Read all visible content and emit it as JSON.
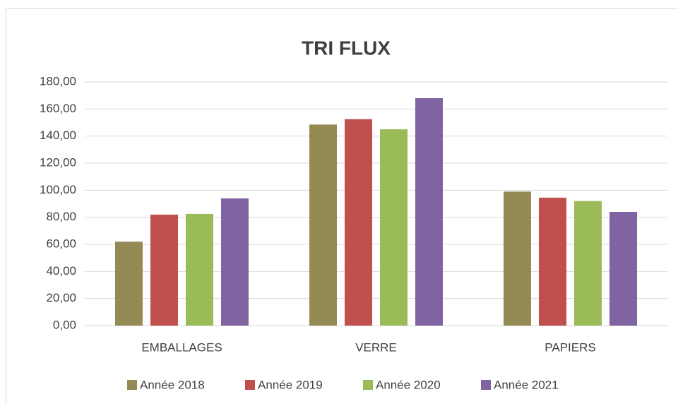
{
  "chart_data": {
    "type": "bar",
    "title": "TRI FLUX",
    "categories": [
      "EMBALLAGES",
      "VERRE",
      "PAPIERS"
    ],
    "series": [
      {
        "name": "Année 2018",
        "color": "#948a54",
        "values": [
          62,
          148.5,
          99
        ]
      },
      {
        "name": "Année 2019",
        "color": "#c0504d",
        "values": [
          82,
          152.5,
          94.5
        ]
      },
      {
        "name": "Année 2020",
        "color": "#9bbb59",
        "values": [
          82.5,
          145,
          92
        ]
      },
      {
        "name": "Année 2021",
        "color": "#8064a2",
        "values": [
          94,
          168,
          84
        ]
      }
    ],
    "ylim": [
      0,
      180
    ],
    "yticks": [
      {
        "value": 0,
        "label": "0,00"
      },
      {
        "value": 20,
        "label": "20,00"
      },
      {
        "value": 40,
        "label": "40,00"
      },
      {
        "value": 60,
        "label": "60,00"
      },
      {
        "value": 80,
        "label": "80,00"
      },
      {
        "value": 100,
        "label": "100,00"
      },
      {
        "value": 120,
        "label": "120,00"
      },
      {
        "value": 140,
        "label": "140,00"
      },
      {
        "value": 160,
        "label": "160,00"
      },
      {
        "value": 180,
        "label": "180,00"
      }
    ],
    "grid": true,
    "legend": "bottom"
  }
}
